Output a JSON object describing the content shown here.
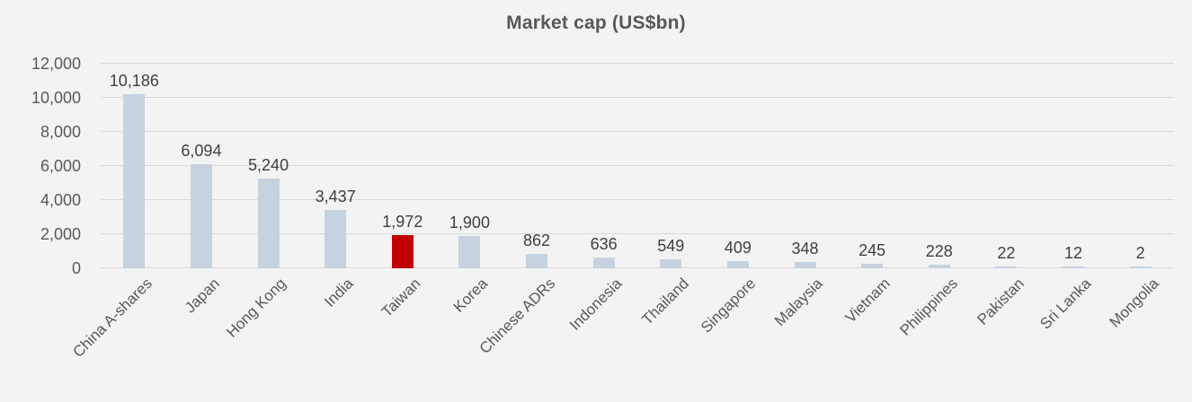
{
  "chart_data": {
    "type": "bar",
    "title": "Market cap (US$bn)",
    "categories": [
      "China A-shares",
      "Japan",
      "Hong Kong",
      "India",
      "Taiwan",
      "Korea",
      "Chinese ADRs",
      "Indonesia",
      "Thailand",
      "Singapore",
      "Malaysia",
      "Vietnam",
      "Philippines",
      "Pakistan",
      "Sri Lanka",
      "Mongolia"
    ],
    "values": [
      10186,
      6094,
      5240,
      3437,
      1972,
      1900,
      862,
      636,
      549,
      409,
      348,
      245,
      228,
      22,
      12,
      2
    ],
    "value_labels": [
      "10,186",
      "6,094",
      "5,240",
      "3,437",
      "1,972",
      "1,900",
      "862",
      "636",
      "549",
      "409",
      "348",
      "245",
      "228",
      "22",
      "12",
      "2"
    ],
    "highlight_index": 4,
    "highlight_category": "Taiwan",
    "xlabel": "",
    "ylabel": "",
    "ylim": [
      0,
      12000
    ],
    "ytick_step": 2000,
    "ytick_labels": [
      "0",
      "2,000",
      "4,000",
      "6,000",
      "8,000",
      "10,000",
      "12,000"
    ],
    "grid": true,
    "legend_position": "none",
    "colors": {
      "bar": "#c6d2df",
      "highlight": "#c00000",
      "background": "#f3f3f3",
      "gridline": "#d9d9d9",
      "title_text": "#57585a",
      "value_text": "#3f3f3f",
      "axis_text": "#595959"
    }
  }
}
